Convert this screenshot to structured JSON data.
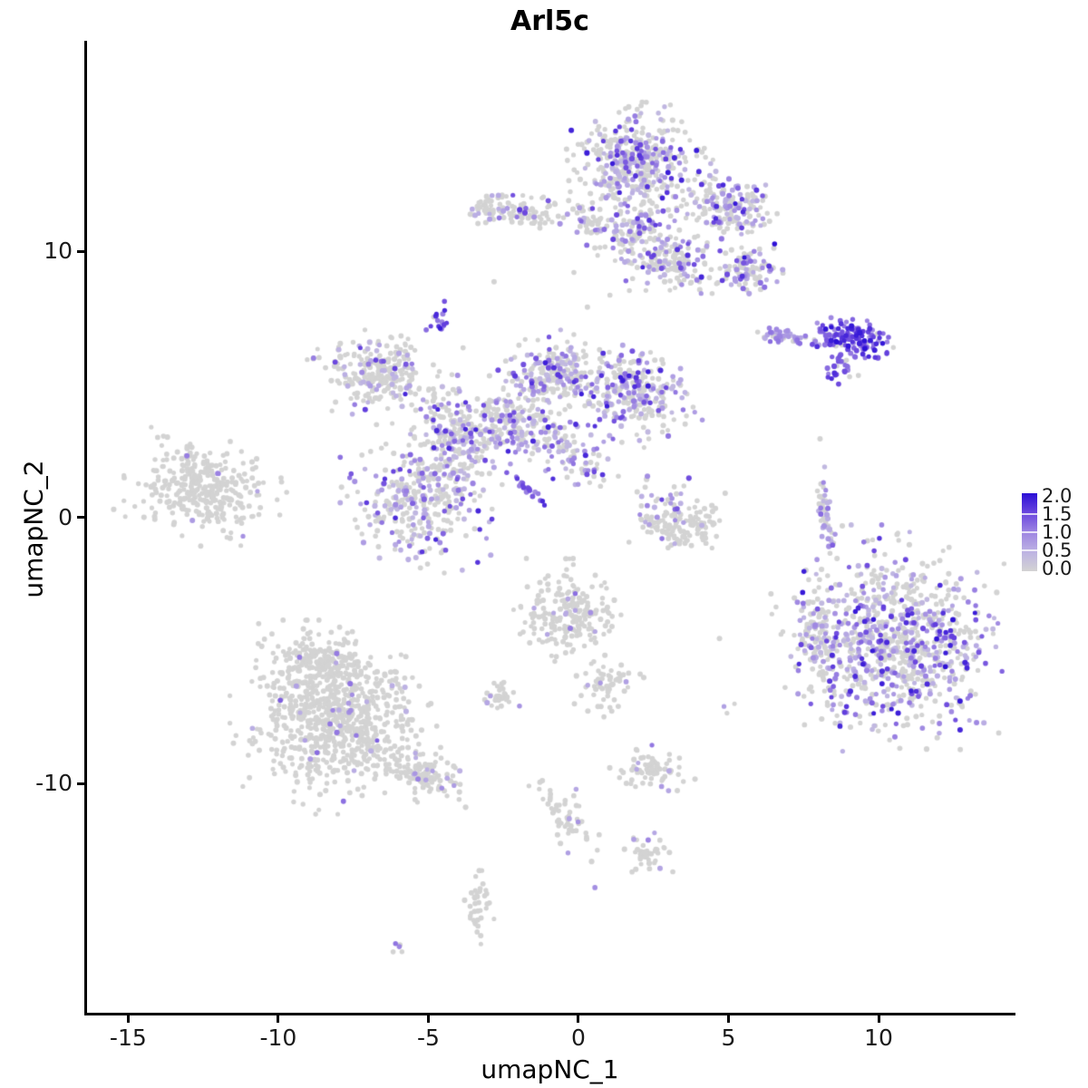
{
  "chart_data": {
    "type": "scatter",
    "title": "Arl5c",
    "subtitle": "",
    "xlabel": "umapNC_1",
    "ylabel": "umapNC_2",
    "xlim": [
      -16.4,
      14.5
    ],
    "ylim": [
      -18.6,
      17.9
    ],
    "grid": "off",
    "x_ticks": [
      {
        "v": -15,
        "label": "-15"
      },
      {
        "v": -10,
        "label": "-10"
      },
      {
        "v": -5,
        "label": "-5"
      },
      {
        "v": 0,
        "label": "0"
      },
      {
        "v": 5,
        "label": "5"
      },
      {
        "v": 10,
        "label": "10"
      }
    ],
    "y_ticks": [
      {
        "v": 10,
        "label": "10"
      },
      {
        "v": 0,
        "label": "0"
      },
      {
        "v": -10,
        "label": "-10"
      }
    ],
    "legend": {
      "position": "right",
      "ticks_top_to_bottom": [
        "2.0",
        "1.5",
        "1.0",
        "0.5",
        "0.0"
      ],
      "value_min": 0.0,
      "value_max": 2.0,
      "gradient_stops": [
        {
          "t": 0.0,
          "color": "#d3d3d3"
        },
        {
          "t": 0.25,
          "color": "#bdb2e3"
        },
        {
          "t": 0.5,
          "color": "#9d85e2"
        },
        {
          "t": 0.75,
          "color": "#6a46de"
        },
        {
          "t": 1.0,
          "color": "#2b0fd6"
        }
      ]
    },
    "point_radius": 2.8,
    "seed": 20240611,
    "clusters": [
      {
        "name": "top-main",
        "n": 420,
        "cx": 1.9,
        "cy": 13.3,
        "sx": 0.85,
        "sy": 0.85,
        "rot": 0,
        "frac": 0.38,
        "lo": 0.4,
        "hi": 1.9,
        "pow": 2
      },
      {
        "name": "top-right-arm",
        "n": 190,
        "cx": 4.9,
        "cy": 11.7,
        "sx": 0.75,
        "sy": 0.55,
        "rot": -20,
        "frac": 0.42,
        "lo": 0.4,
        "hi": 2.0,
        "pow": 2
      },
      {
        "name": "top-lower-arm",
        "n": 170,
        "cx": 3.0,
        "cy": 9.7,
        "sx": 0.8,
        "sy": 0.55,
        "rot": -15,
        "frac": 0.35,
        "lo": 0.4,
        "hi": 1.8,
        "pow": 2
      },
      {
        "name": "top-lowerright-blob",
        "n": 90,
        "cx": 5.6,
        "cy": 9.2,
        "sx": 0.45,
        "sy": 0.4,
        "rot": 0,
        "frac": 0.5,
        "lo": 0.5,
        "hi": 2.0,
        "pow": 2
      },
      {
        "name": "top-left-spur",
        "n": 45,
        "cx": 0.33,
        "cy": 11.05,
        "sx": 0.3,
        "sy": 0.45,
        "rot": 0,
        "frac": 0.3,
        "lo": 0.4,
        "hi": 1.5,
        "pow": 2
      },
      {
        "name": "top-connector",
        "n": 90,
        "cx": 1.9,
        "cy": 10.9,
        "sx": 0.5,
        "sy": 0.5,
        "rot": 0,
        "frac": 0.35,
        "lo": 0.4,
        "hi": 1.8,
        "pow": 2
      },
      {
        "name": "topleft-small",
        "n": 95,
        "cx": -1.9,
        "cy": 11.5,
        "sx": 0.75,
        "sy": 0.3,
        "rot": -10,
        "frac": 0.2,
        "lo": 0.5,
        "hi": 1.6,
        "pow": 2
      },
      {
        "name": "topleft-tip",
        "n": 30,
        "cx": -3.0,
        "cy": 11.7,
        "sx": 0.25,
        "sy": 0.3,
        "rot": 0,
        "frac": 0.1,
        "lo": 0.5,
        "hi": 1.0,
        "pow": 2
      },
      {
        "name": "purple-knob",
        "n": 16,
        "cx": -4.6,
        "cy": 7.4,
        "sx": 0.18,
        "sy": 0.28,
        "rot": 0,
        "frac": 0.95,
        "lo": 1.0,
        "hi": 2.0,
        "pow": 1
      },
      {
        "name": "fish-tail",
        "n": 50,
        "cx": 7.0,
        "cy": 6.75,
        "sx": 0.55,
        "sy": 0.12,
        "rot": -5,
        "frac": 0.8,
        "lo": 0.5,
        "hi": 1.2,
        "pow": 1
      },
      {
        "name": "fish-head",
        "n": 130,
        "cx": 9.15,
        "cy": 6.7,
        "sx": 0.6,
        "sy": 0.3,
        "rot": -10,
        "frac": 0.92,
        "lo": 0.8,
        "hi": 2.0,
        "pow": 1
      },
      {
        "name": "fish-lower-spur",
        "n": 28,
        "cx": 8.8,
        "cy": 5.7,
        "sx": 0.35,
        "sy": 0.25,
        "rot": 40,
        "frac": 0.85,
        "lo": 0.7,
        "hi": 1.8,
        "pow": 1
      },
      {
        "name": "central-left-lobe",
        "n": 260,
        "cx": -6.6,
        "cy": 5.5,
        "sx": 0.95,
        "sy": 0.65,
        "rot": -10,
        "frac": 0.22,
        "lo": 0.4,
        "hi": 1.8,
        "pow": 2
      },
      {
        "name": "central-lowerleft",
        "n": 360,
        "cx": -5.1,
        "cy": 0.75,
        "sx": 1.05,
        "sy": 1.05,
        "rot": 0,
        "frac": 0.38,
        "lo": 0.4,
        "hi": 1.8,
        "pow": 2
      },
      {
        "name": "central-neck",
        "n": 170,
        "cx": -4.1,
        "cy": 3.2,
        "sx": 0.55,
        "sy": 0.8,
        "rot": 20,
        "frac": 0.38,
        "lo": 0.4,
        "hi": 1.8,
        "pow": 2
      },
      {
        "name": "central-mid",
        "n": 200,
        "cx": -2.3,
        "cy": 3.5,
        "sx": 0.8,
        "sy": 0.6,
        "rot": 0,
        "frac": 0.35,
        "lo": 0.4,
        "hi": 1.9,
        "pow": 2
      },
      {
        "name": "central-topmid",
        "n": 220,
        "cx": -0.8,
        "cy": 5.5,
        "sx": 0.8,
        "sy": 0.55,
        "rot": 10,
        "frac": 0.38,
        "lo": 0.4,
        "hi": 1.9,
        "pow": 2
      },
      {
        "name": "central-right-lobe",
        "n": 290,
        "cx": 1.75,
        "cy": 4.7,
        "sx": 0.95,
        "sy": 0.7,
        "rot": -15,
        "frac": 0.42,
        "lo": 0.4,
        "hi": 1.9,
        "pow": 2
      },
      {
        "name": "central-bridge",
        "n": 90,
        "cx": -0.35,
        "cy": 2.55,
        "sx": 0.8,
        "sy": 0.5,
        "rot": -30,
        "frac": 0.45,
        "lo": 0.4,
        "hi": 1.8,
        "pow": 2
      },
      {
        "name": "purple-streak",
        "n": 22,
        "cx": -1.77,
        "cy": 1.15,
        "sx": 0.42,
        "sy": 0.06,
        "rot": -45,
        "frac": 1.0,
        "lo": 0.8,
        "hi": 1.8,
        "pow": 1
      },
      {
        "name": "left-cluster",
        "n": 330,
        "cx": -12.5,
        "cy": 1.0,
        "sx": 1.0,
        "sy": 0.75,
        "rot": -15,
        "frac": 0.03,
        "lo": 0.6,
        "hi": 1.2,
        "pow": 2
      },
      {
        "name": "crescent-arc-left",
        "n": 45,
        "cx": 2.75,
        "cy": -0.35,
        "sx": 0.5,
        "sy": 0.35,
        "rot": 0,
        "frac": 0.05,
        "lo": 0.5,
        "hi": 1.0,
        "pow": 2
      },
      {
        "name": "crescent-arc-right",
        "n": 50,
        "cx": 3.75,
        "cy": -0.45,
        "sx": 0.55,
        "sy": 0.3,
        "rot": 10,
        "frac": 0.05,
        "lo": 0.5,
        "hi": 1.0,
        "pow": 2
      },
      {
        "name": "crescent-tip",
        "n": 15,
        "cx": 4.35,
        "cy": 0.1,
        "sx": 0.2,
        "sy": 0.3,
        "rot": 0,
        "frac": 0.1,
        "lo": 0.5,
        "hi": 1.0,
        "pow": 2
      },
      {
        "name": "crescent-top",
        "n": 45,
        "cx": 2.95,
        "cy": 0.5,
        "sx": 0.55,
        "sy": 0.55,
        "rot": 0,
        "frac": 0.4,
        "lo": 0.5,
        "hi": 1.6,
        "pow": 2
      },
      {
        "name": "vertical-streak",
        "n": 48,
        "cx": 8.2,
        "cy": 0.25,
        "sx": 0.12,
        "sy": 0.75,
        "rot": 8,
        "frac": 0.45,
        "lo": 0.4,
        "hi": 1.4,
        "pow": 2
      },
      {
        "name": "bottomright-main",
        "n": 850,
        "cx": 10.6,
        "cy": -4.6,
        "sx": 1.55,
        "sy": 1.6,
        "rot": 0,
        "frac": 0.45,
        "lo": 0.4,
        "hi": 2.0,
        "pow": 2.2
      },
      {
        "name": "bottomright-left-ext",
        "n": 110,
        "cx": 8.0,
        "cy": -4.4,
        "sx": 0.45,
        "sy": 1.15,
        "rot": 10,
        "frac": 0.4,
        "lo": 0.4,
        "hi": 1.6,
        "pow": 2
      },
      {
        "name": "midsmall-main",
        "n": 210,
        "cx": -0.35,
        "cy": -3.7,
        "sx": 0.75,
        "sy": 0.8,
        "rot": 0,
        "frac": 0.035,
        "lo": 0.6,
        "hi": 1.4,
        "pow": 2
      },
      {
        "name": "midsmall-tail",
        "n": 55,
        "cx": 0.95,
        "cy": -6.3,
        "sx": 0.45,
        "sy": 0.55,
        "rot": -35,
        "frac": 0.03,
        "lo": 0.6,
        "hi": 1.0,
        "pow": 2
      },
      {
        "name": "bottomleft-main",
        "n": 780,
        "cx": -8.1,
        "cy": -7.5,
        "sx": 1.3,
        "sy": 1.35,
        "rot": 0,
        "frac": 0.035,
        "lo": 0.5,
        "hi": 1.3,
        "pow": 2
      },
      {
        "name": "bottomleft-top-spur",
        "n": 130,
        "cx": -8.6,
        "cy": -5.4,
        "sx": 0.6,
        "sy": 0.45,
        "rot": 0,
        "frac": 0.04,
        "lo": 0.5,
        "hi": 1.2,
        "pow": 2
      },
      {
        "name": "bottomleft-tail",
        "n": 130,
        "cx": -5.3,
        "cy": -9.6,
        "sx": 0.75,
        "sy": 0.35,
        "rot": -28,
        "frac": 0.06,
        "lo": 0.5,
        "hi": 1.2,
        "pow": 2
      },
      {
        "name": "small-blob-left",
        "n": 32,
        "cx": -2.6,
        "cy": -6.7,
        "sx": 0.28,
        "sy": 0.25,
        "rot": 0,
        "frac": 0.04,
        "lo": 0.6,
        "hi": 1.0,
        "pow": 2
      },
      {
        "name": "bottom-group-a",
        "n": 75,
        "cx": 2.4,
        "cy": -9.45,
        "sx": 0.55,
        "sy": 0.3,
        "rot": 0,
        "frac": 0.05,
        "lo": 0.6,
        "hi": 1.2,
        "pow": 2
      },
      {
        "name": "bottom-trail",
        "n": 55,
        "cx": -0.45,
        "cy": -11.1,
        "sx": 0.3,
        "sy": 0.75,
        "rot": 25,
        "frac": 0.07,
        "lo": 0.6,
        "hi": 1.2,
        "pow": 2
      },
      {
        "name": "bottom-group-c",
        "n": 42,
        "cx": 2.25,
        "cy": -12.6,
        "sx": 0.4,
        "sy": 0.28,
        "rot": 0,
        "frac": 0.06,
        "lo": 0.6,
        "hi": 1.2,
        "pow": 2
      },
      {
        "name": "bottom-vertical",
        "n": 38,
        "cx": -3.3,
        "cy": -14.4,
        "sx": 0.22,
        "sy": 0.6,
        "rot": 0,
        "frac": 0.06,
        "lo": 0.6,
        "hi": 1.2,
        "pow": 2
      },
      {
        "name": "bottom-tiny-pair",
        "n": 5,
        "cx": -6.0,
        "cy": -16.1,
        "sx": 0.12,
        "sy": 0.1,
        "rot": -30,
        "frac": 0.4,
        "lo": 0.8,
        "hi": 1.2,
        "pow": 1
      }
    ],
    "singles": [
      {
        "x": -2.81,
        "y": 8.85,
        "v": 0
      },
      {
        "x": -0.15,
        "y": 9.2,
        "v": 0
      },
      {
        "x": 0.3,
        "y": 7.9,
        "v": 0
      },
      {
        "x": 1.05,
        "y": 8.35,
        "v": 0
      },
      {
        "x": 8.05,
        "y": 2.95,
        "v": 0
      },
      {
        "x": 8.1,
        "y": -1.95,
        "v": 0
      },
      {
        "x": 4.7,
        "y": -4.55,
        "v": 0
      },
      {
        "x": 4.85,
        "y": -7.1,
        "v": 0.7
      },
      {
        "x": 4.95,
        "y": -7.35,
        "v": 0
      },
      {
        "x": 5.2,
        "y": -7.0,
        "v": 0
      },
      {
        "x": 0.55,
        "y": -13.9,
        "v": 0.9
      },
      {
        "x": 2.45,
        "y": -8.55,
        "v": 1.1
      },
      {
        "x": 2.3,
        "y": 1.55,
        "v": 0.9
      }
    ]
  }
}
